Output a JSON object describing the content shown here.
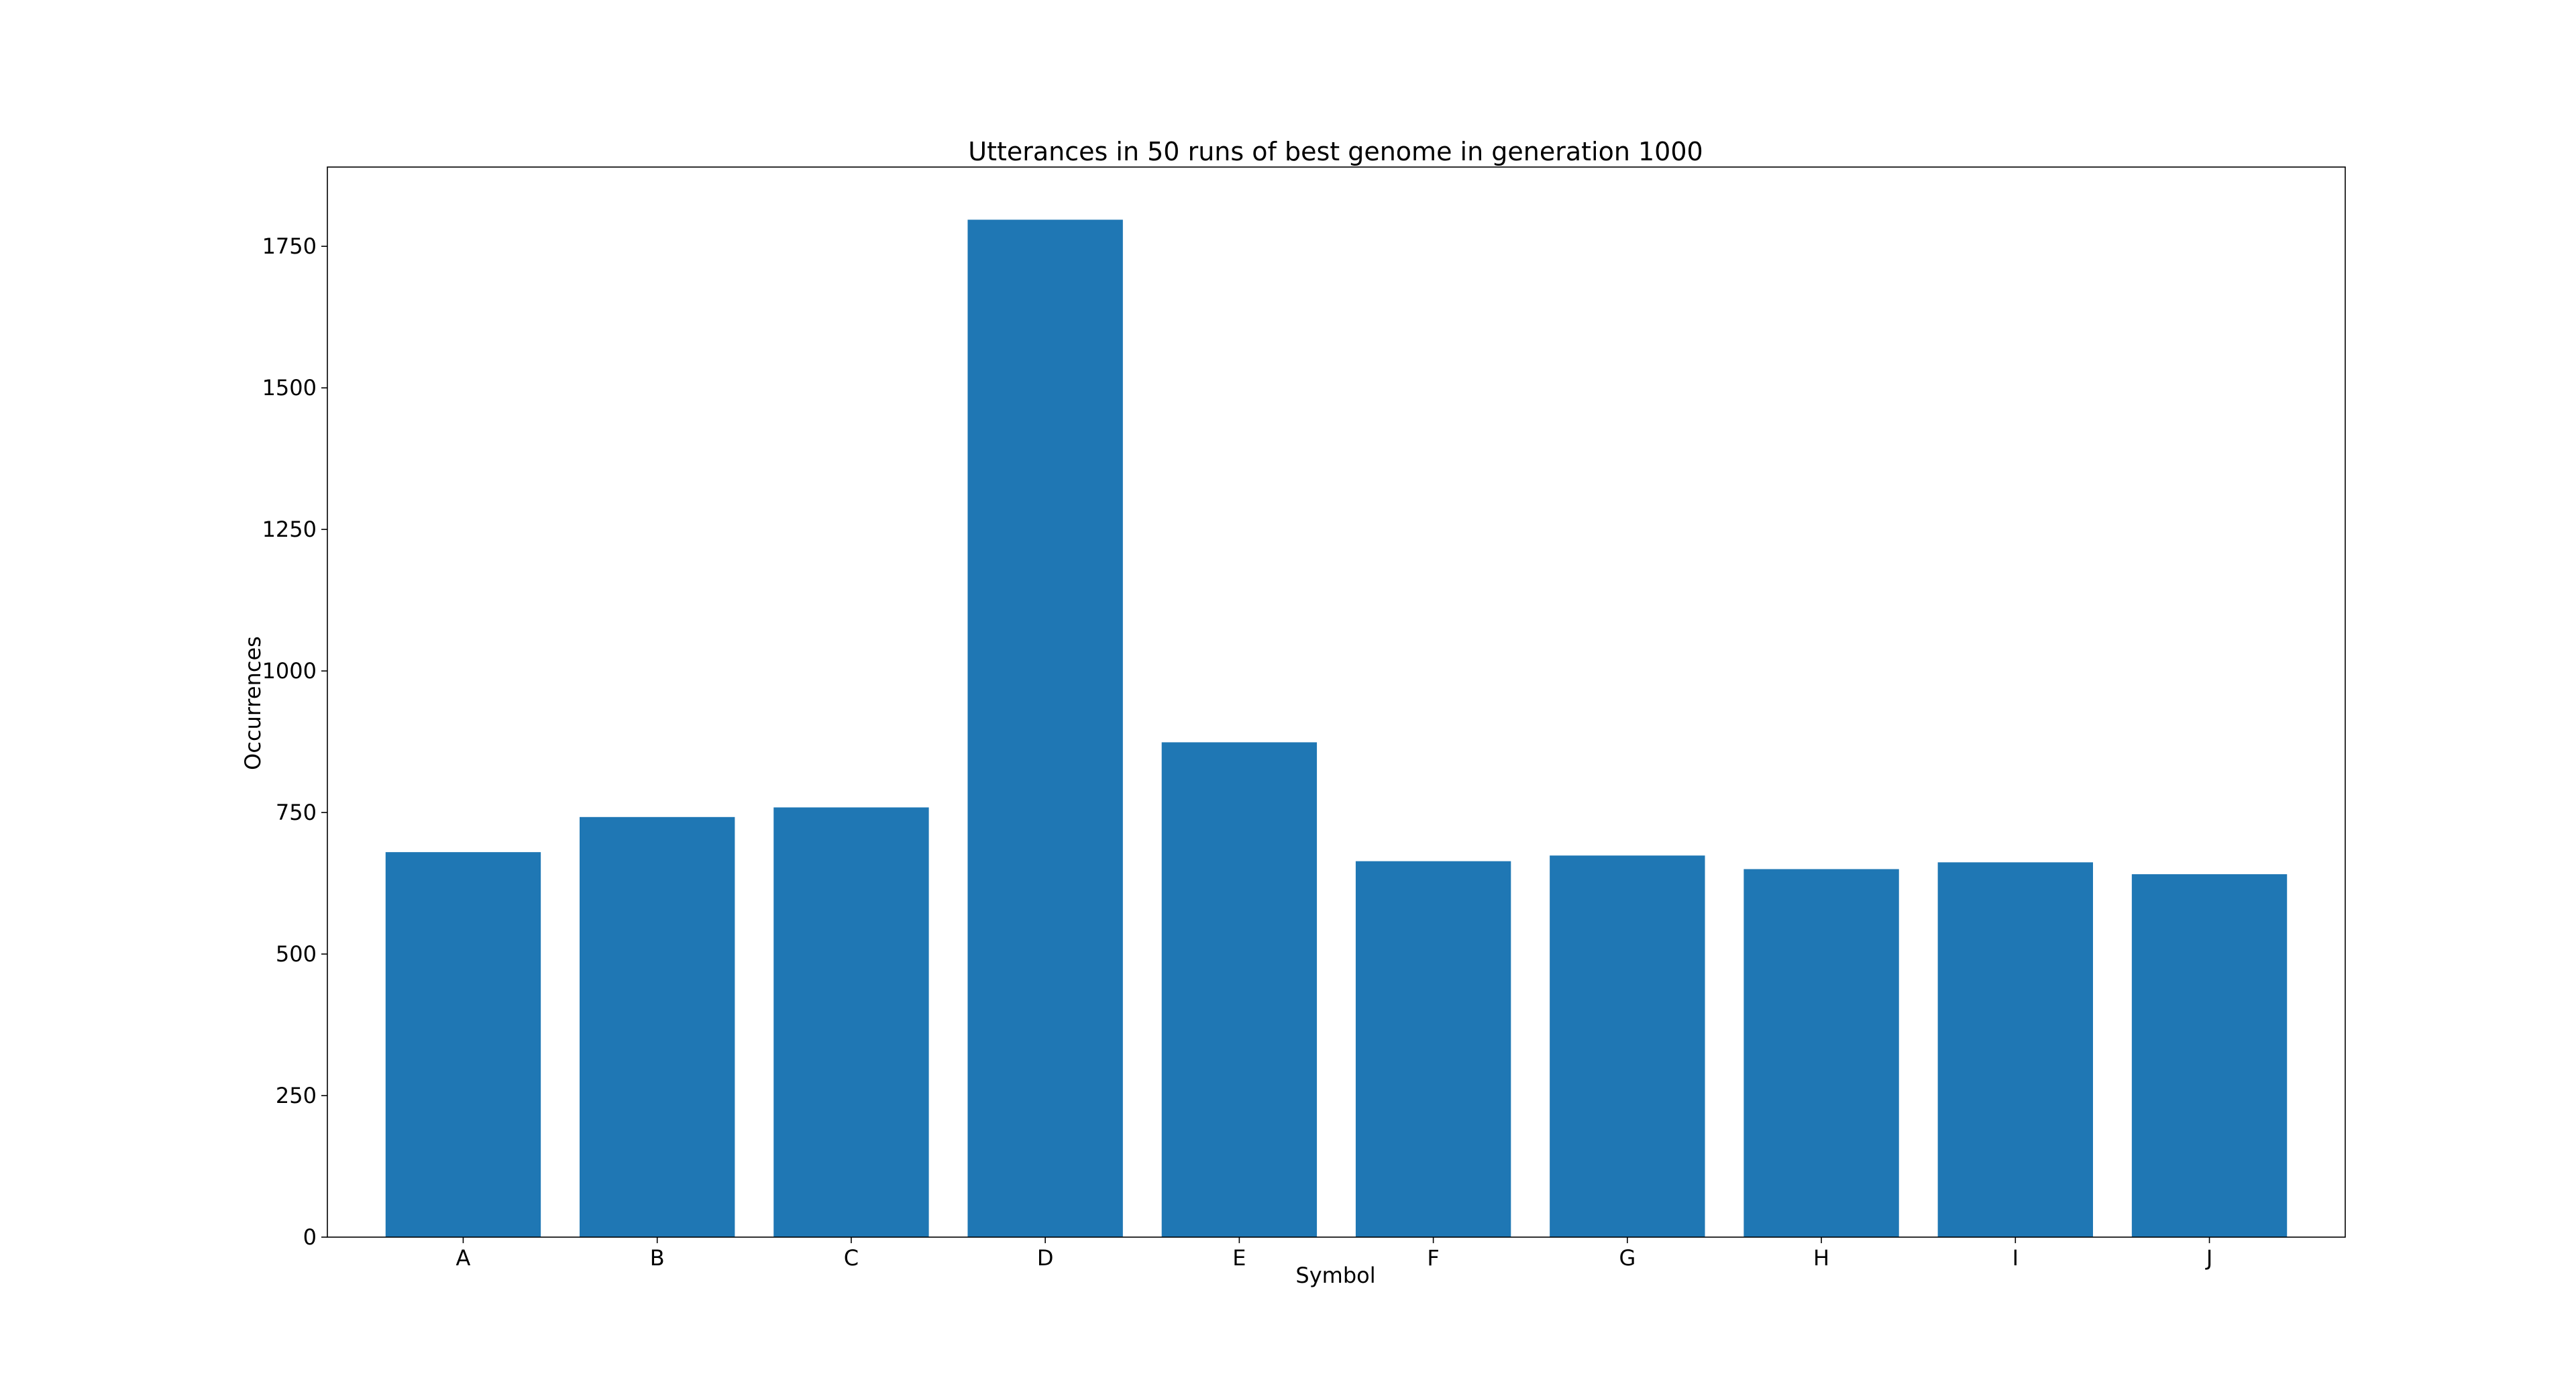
{
  "chart_data": {
    "type": "bar",
    "title": "Utterances in 50 runs of best genome in generation 1000",
    "xlabel": "Symbol",
    "ylabel": "Occurrences",
    "categories": [
      "A",
      "B",
      "C",
      "D",
      "E",
      "F",
      "G",
      "H",
      "I",
      "J"
    ],
    "values": [
      680,
      742,
      759,
      1797,
      874,
      664,
      674,
      650,
      662,
      641
    ],
    "ylim": [
      0,
      1890
    ],
    "yticks": [
      0,
      250,
      500,
      750,
      1000,
      1250,
      1500,
      1750
    ],
    "grid": false,
    "legend": "none",
    "bar_color": "#1f77b4"
  }
}
